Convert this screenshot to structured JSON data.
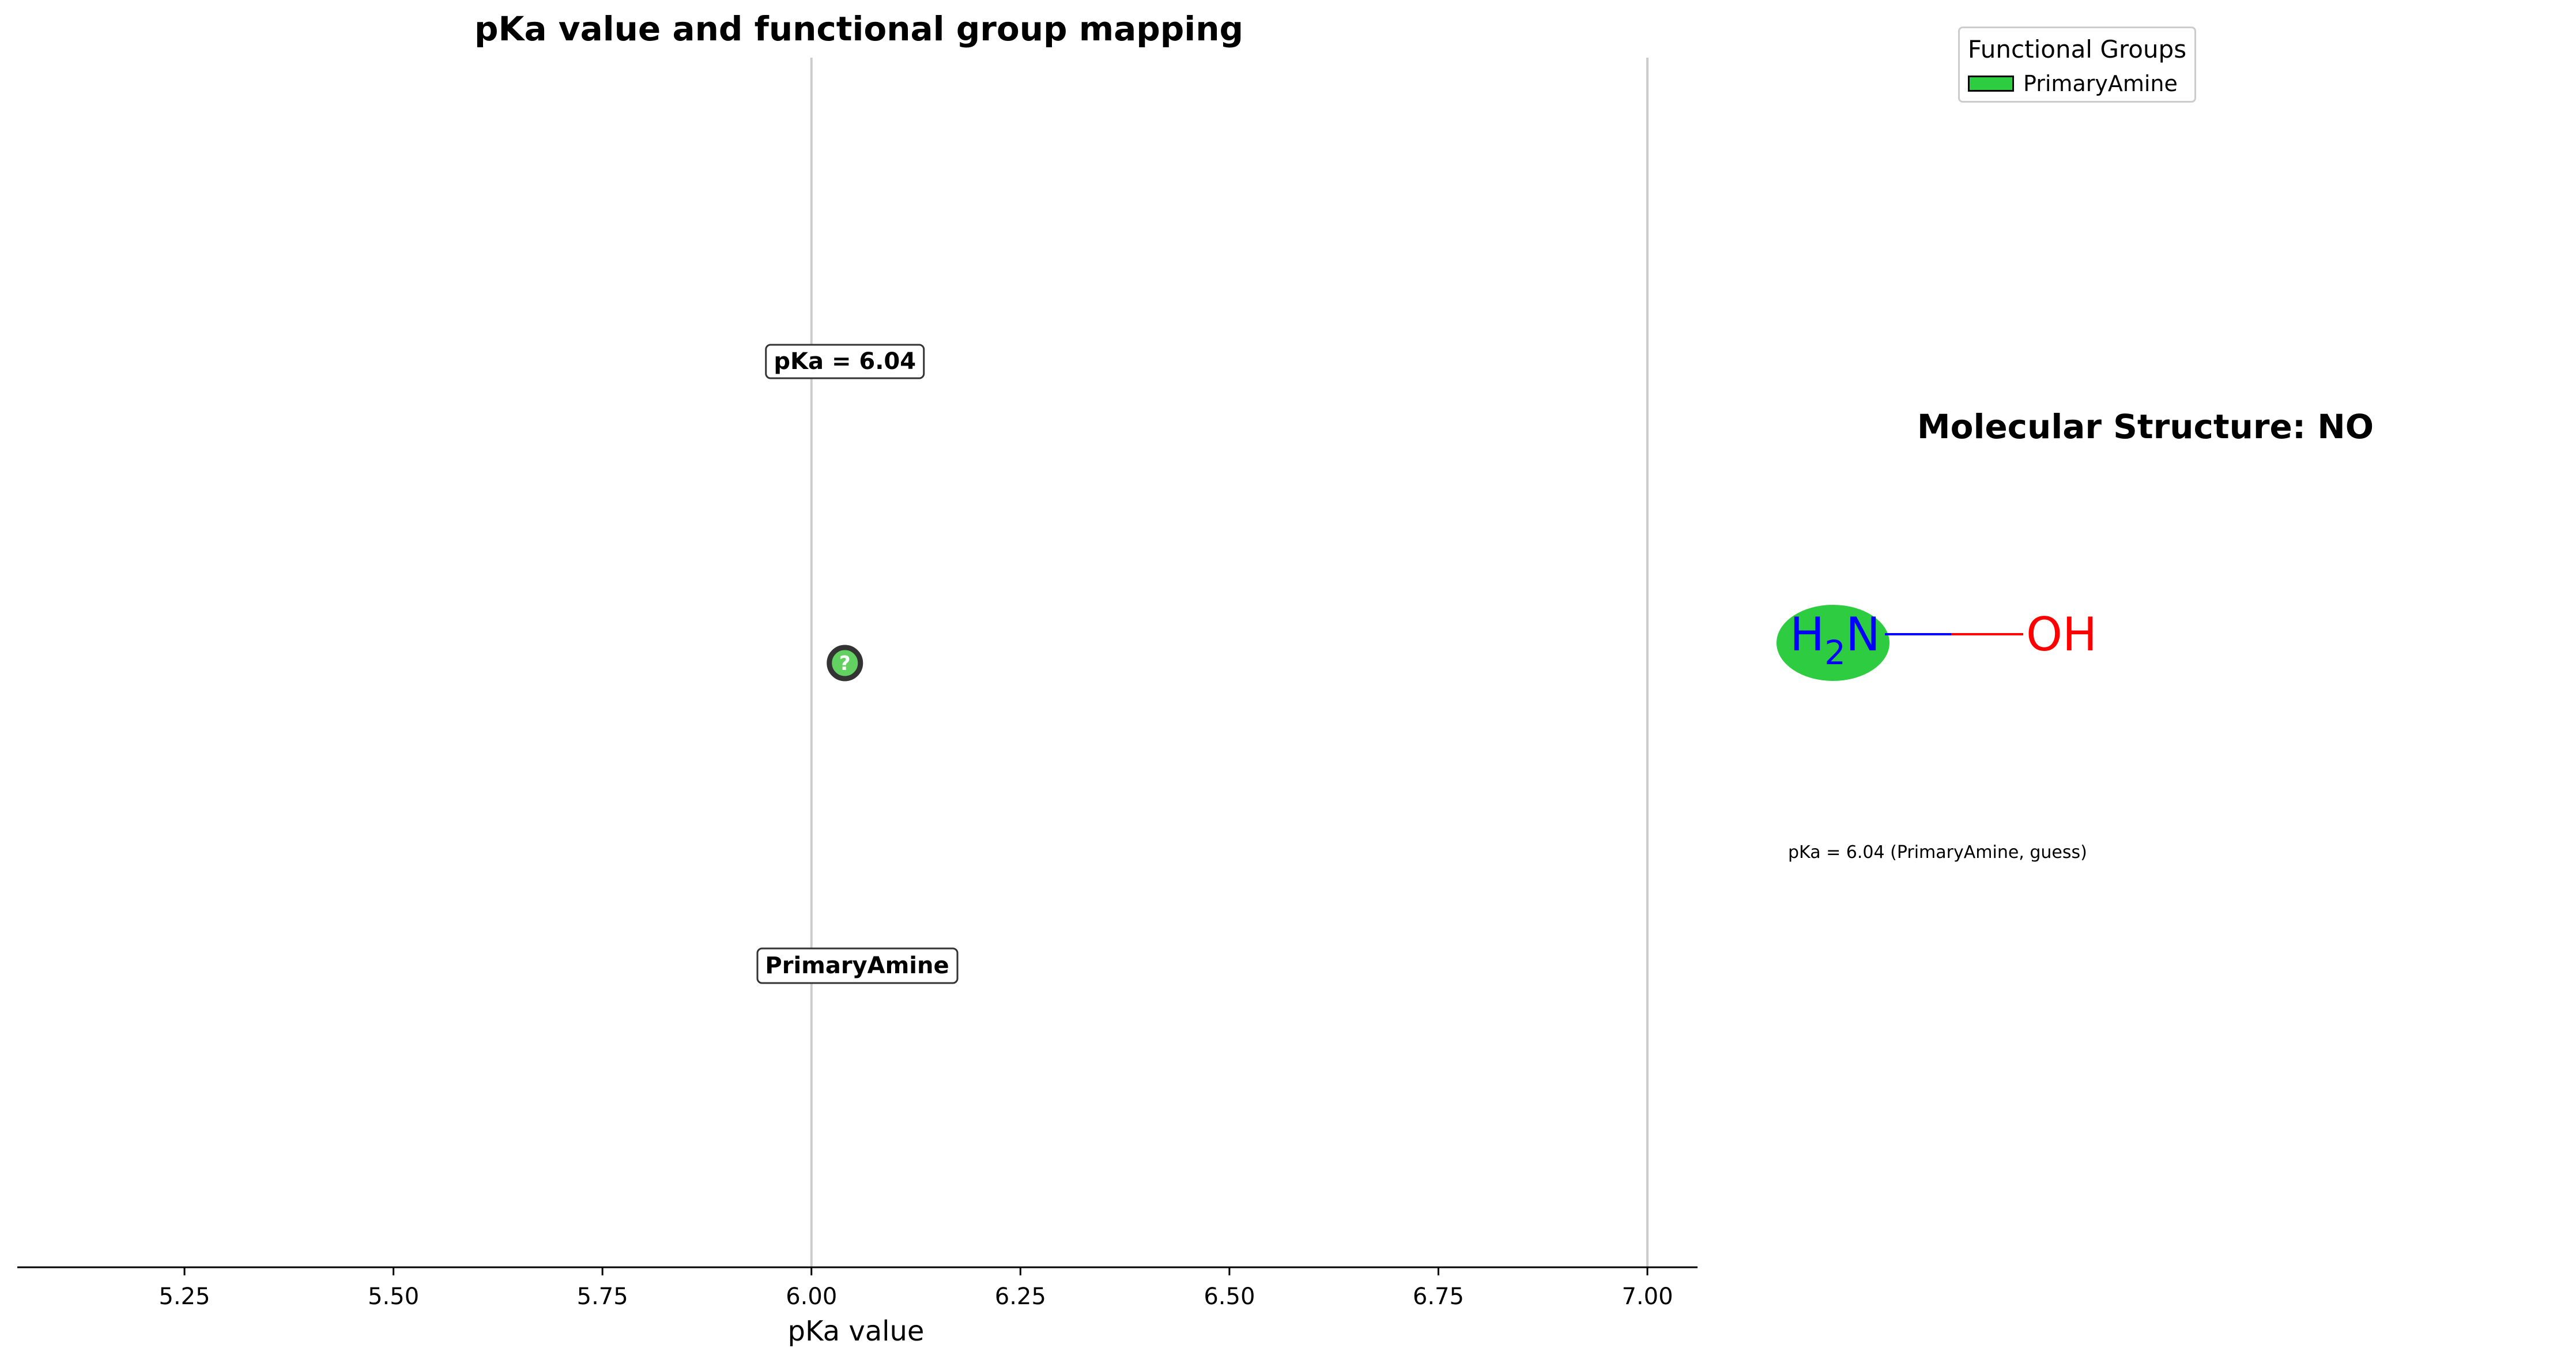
{
  "chart_data": [
    {
      "type": "scatter",
      "title": "pKa value and functional group mapping",
      "xlabel": "pKa value",
      "xlim": [
        5.05,
        7.06
      ],
      "xticks": [
        5.25,
        5.5,
        5.75,
        6.0,
        6.25,
        6.5,
        6.75,
        7.0
      ],
      "xtick_labels": [
        "5.25",
        "5.50",
        "5.75",
        "6.00",
        "6.25",
        "6.50",
        "6.75",
        "7.00"
      ],
      "vlines": [
        6.0,
        7.0
      ],
      "grid": false,
      "points": [
        {
          "x": 6.04,
          "marker_label": "?",
          "color": "#62d162"
        }
      ],
      "annotations": {
        "value_label": "pKa = 6.04",
        "group_label": "PrimaryAmine"
      },
      "legend": {
        "title": "Functional Groups",
        "placement": "top-right",
        "entries": [
          {
            "label": "PrimaryAmine",
            "color": "#2ecc40"
          }
        ]
      }
    }
  ],
  "molecule": {
    "title": "Molecular Structure: NO",
    "atom_left": {
      "main": "H",
      "sub": "2",
      "tail": "N",
      "color": "#0000ff",
      "highlight": "#2ecc40"
    },
    "atom_right": {
      "text": "OH",
      "color": "#ff0000"
    },
    "caption": "pKa = 6.04 (PrimaryAmine, guess)"
  }
}
